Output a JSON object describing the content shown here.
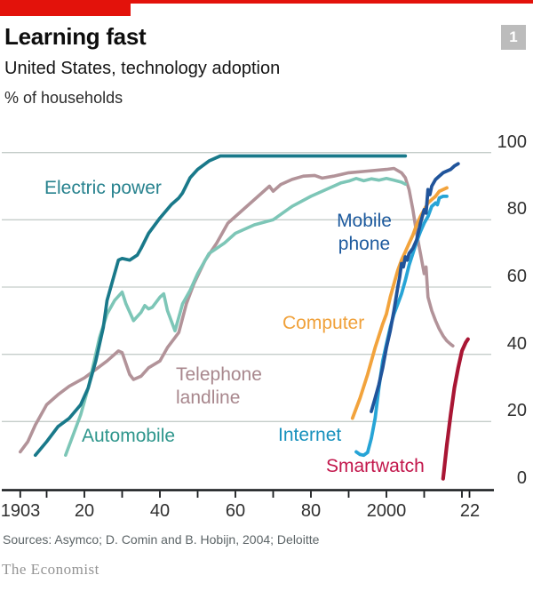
{
  "header": {
    "title": "Learning fast",
    "subtitle": "United States, technology adoption",
    "unit": "% of households",
    "badge": "1"
  },
  "footer": {
    "sources": "Sources: Asymco; D. Comin and B. Hobijn, 2004; Deloitte",
    "brand": "The Economist"
  },
  "style": {
    "accent_red": "#e3120b",
    "badge_bg": "#bcbcbc",
    "grid_color": "#c5cdca",
    "axis_color": "#16191b",
    "tick_text_color": "#2f2f2f"
  },
  "chart_data": {
    "type": "line",
    "title": "Learning fast",
    "subtitle": "United States, technology adoption",
    "ylabel": "% of households",
    "xlim": [
      1900,
      2025
    ],
    "ylim": [
      0,
      100
    ],
    "grid": "horizontal",
    "legend_position": "inline-labels",
    "yticks": [
      0,
      20,
      40,
      60,
      80,
      100
    ],
    "xticks": [
      {
        "year": 1903,
        "label": "1903"
      },
      {
        "year": 1910,
        "label": ""
      },
      {
        "year": 1920,
        "label": "20"
      },
      {
        "year": 1930,
        "label": ""
      },
      {
        "year": 1940,
        "label": "40"
      },
      {
        "year": 1950,
        "label": ""
      },
      {
        "year": 1960,
        "label": "60"
      },
      {
        "year": 1970,
        "label": ""
      },
      {
        "year": 1980,
        "label": "80"
      },
      {
        "year": 1990,
        "label": ""
      },
      {
        "year": 2000,
        "label": "2000"
      },
      {
        "year": 2010,
        "label": ""
      },
      {
        "year": 2020,
        "label": ""
      },
      {
        "year": 2022,
        "label": "22"
      }
    ],
    "series": [
      {
        "id": "telephone_landline",
        "label": "Telephone landline",
        "label_lines": [
          "Telephone",
          "landline"
        ],
        "color": "#b29399",
        "label_color": "#a8878d",
        "width": 3.6,
        "points": [
          [
            1903,
            11
          ],
          [
            1905,
            14
          ],
          [
            1907,
            19
          ],
          [
            1910,
            25
          ],
          [
            1913,
            28
          ],
          [
            1916,
            30.5
          ],
          [
            1920,
            33
          ],
          [
            1923,
            35.5
          ],
          [
            1926,
            38
          ],
          [
            1929,
            41
          ],
          [
            1930,
            40.5
          ],
          [
            1932,
            34
          ],
          [
            1933,
            32.5
          ],
          [
            1935,
            33.5
          ],
          [
            1937,
            36
          ],
          [
            1940,
            38
          ],
          [
            1942,
            42
          ],
          [
            1945,
            46.5
          ],
          [
            1947,
            55
          ],
          [
            1949,
            61
          ],
          [
            1952,
            68
          ],
          [
            1955,
            73
          ],
          [
            1958,
            79
          ],
          [
            1962,
            83
          ],
          [
            1965,
            86
          ],
          [
            1969,
            90
          ],
          [
            1970,
            88.5
          ],
          [
            1972,
            90.5
          ],
          [
            1975,
            92
          ],
          [
            1978,
            93
          ],
          [
            1981,
            93.2
          ],
          [
            1983,
            92.4
          ],
          [
            1986,
            93
          ],
          [
            1990,
            94
          ],
          [
            1995,
            94.5
          ],
          [
            2000,
            95
          ],
          [
            2002,
            95.3
          ],
          [
            2004,
            94
          ],
          [
            2005,
            92.5
          ],
          [
            2006,
            89
          ],
          [
            2007,
            83
          ],
          [
            2008,
            76
          ],
          [
            2009,
            70
          ],
          [
            2010,
            64
          ],
          [
            2010.5,
            66
          ],
          [
            2011,
            57
          ],
          [
            2012,
            53
          ],
          [
            2013,
            50
          ],
          [
            2014,
            47.5
          ],
          [
            2015,
            45.5
          ],
          [
            2016,
            44
          ],
          [
            2017,
            43
          ],
          [
            2017.6,
            42.5
          ]
        ]
      },
      {
        "id": "automobile",
        "label": "Automobile",
        "color": "#7dc6b7",
        "label_color": "#2e968c",
        "width": 3.6,
        "points": [
          [
            1915,
            10
          ],
          [
            1917,
            16
          ],
          [
            1919,
            22
          ],
          [
            1921,
            30
          ],
          [
            1922,
            35
          ],
          [
            1924,
            45
          ],
          [
            1926,
            52
          ],
          [
            1928,
            56
          ],
          [
            1930,
            58.5
          ],
          [
            1931,
            55
          ],
          [
            1933,
            50
          ],
          [
            1935,
            52.5
          ],
          [
            1936,
            54.5
          ],
          [
            1937,
            53.5
          ],
          [
            1938,
            54
          ],
          [
            1940,
            57
          ],
          [
            1941,
            58
          ],
          [
            1942,
            53
          ],
          [
            1944,
            47
          ],
          [
            1946,
            55
          ],
          [
            1948,
            59
          ],
          [
            1950,
            64
          ],
          [
            1953,
            70
          ],
          [
            1957,
            73
          ],
          [
            1960,
            76
          ],
          [
            1965,
            78.5
          ],
          [
            1970,
            80
          ],
          [
            1975,
            84
          ],
          [
            1980,
            87
          ],
          [
            1985,
            89.5
          ],
          [
            1988,
            91
          ],
          [
            1990,
            91.5
          ],
          [
            1992,
            92.3
          ],
          [
            1994,
            91.6
          ],
          [
            1996,
            92.2
          ],
          [
            1998,
            91.8
          ],
          [
            2000,
            92.3
          ],
          [
            2002,
            91.8
          ],
          [
            2004,
            91.2
          ],
          [
            2005,
            90.6
          ]
        ]
      },
      {
        "id": "electric_power",
        "label": "Electric power",
        "color": "#19798a",
        "label_color": "#27828e",
        "width": 3.7,
        "points": [
          [
            1907,
            10
          ],
          [
            1910,
            14
          ],
          [
            1913,
            18.5
          ],
          [
            1916,
            21
          ],
          [
            1919,
            25
          ],
          [
            1921,
            30
          ],
          [
            1923,
            38
          ],
          [
            1925,
            48
          ],
          [
            1926,
            56
          ],
          [
            1927.5,
            62
          ],
          [
            1929,
            68
          ],
          [
            1930,
            68.5
          ],
          [
            1932,
            68
          ],
          [
            1934,
            69.5
          ],
          [
            1935,
            71.5
          ],
          [
            1937,
            76
          ],
          [
            1940,
            80.5
          ],
          [
            1943,
            84.5
          ],
          [
            1945,
            86.5
          ],
          [
            1946,
            88
          ],
          [
            1948,
            92.5
          ],
          [
            1950,
            95
          ],
          [
            1953,
            97.5
          ],
          [
            1956,
            99
          ],
          [
            1970,
            99
          ],
          [
            1990,
            99
          ],
          [
            2005,
            99
          ]
        ]
      },
      {
        "id": "computer",
        "label": "Computer",
        "color": "#f2a33c",
        "label_color": "#f0a13a",
        "width": 3.8,
        "points": [
          [
            1991,
            21
          ],
          [
            1993,
            27
          ],
          [
            1995,
            34
          ],
          [
            1997,
            42
          ],
          [
            1999,
            49
          ],
          [
            2000,
            52
          ],
          [
            2001,
            57
          ],
          [
            2002,
            61
          ],
          [
            2003,
            65
          ],
          [
            2004,
            68
          ],
          [
            2005,
            70.5
          ],
          [
            2006,
            73
          ],
          [
            2007,
            75.5
          ],
          [
            2008,
            78.5
          ],
          [
            2009,
            81
          ],
          [
            2010,
            83
          ],
          [
            2011,
            85
          ],
          [
            2012,
            86
          ],
          [
            2013,
            87
          ],
          [
            2014,
            88.5
          ],
          [
            2015,
            89
          ],
          [
            2016,
            89.5
          ]
        ]
      },
      {
        "id": "internet",
        "label": "Internet",
        "color": "#27a4d6",
        "label_color": "#1791bd",
        "width": 3.8,
        "points": [
          [
            1992,
            11
          ],
          [
            1993,
            10.2
          ],
          [
            1994,
            10
          ],
          [
            1995,
            10.8
          ],
          [
            1996,
            15
          ],
          [
            1997,
            21
          ],
          [
            1998,
            30
          ],
          [
            1999,
            38
          ],
          [
            2000,
            43
          ],
          [
            2001,
            48
          ],
          [
            2002,
            52
          ],
          [
            2003,
            55
          ],
          [
            2004,
            58
          ],
          [
            2005,
            62
          ],
          [
            2006,
            66.5
          ],
          [
            2007,
            70
          ],
          [
            2008,
            73.5
          ],
          [
            2009,
            76.5
          ],
          [
            2010,
            79
          ],
          [
            2011,
            81
          ],
          [
            2012,
            84
          ],
          [
            2013,
            85
          ],
          [
            2013.5,
            84.5
          ],
          [
            2014,
            86.5
          ],
          [
            2015,
            87
          ],
          [
            2016,
            87
          ]
        ]
      },
      {
        "id": "mobile_phone",
        "label": "Mobile phone",
        "label_lines": [
          "Mobile",
          "phone"
        ],
        "color": "#20549b",
        "label_color": "#1d5a9e",
        "width": 3.8,
        "points": [
          [
            1996,
            23
          ],
          [
            1997,
            27
          ],
          [
            1998,
            31
          ],
          [
            1999,
            36
          ],
          [
            2000,
            42
          ],
          [
            2001,
            47
          ],
          [
            2002,
            53
          ],
          [
            2003,
            60
          ],
          [
            2003.5,
            63
          ],
          [
            2004,
            67
          ],
          [
            2004.5,
            66
          ],
          [
            2005,
            69
          ],
          [
            2005.5,
            68
          ],
          [
            2006,
            70
          ],
          [
            2007,
            71.5
          ],
          [
            2008,
            74
          ],
          [
            2009,
            79
          ],
          [
            2010,
            83
          ],
          [
            2010.5,
            82
          ],
          [
            2011,
            89
          ],
          [
            2011.5,
            87.5
          ],
          [
            2012,
            90
          ],
          [
            2013,
            92
          ],
          [
            2014,
            93
          ],
          [
            2015,
            94
          ],
          [
            2016,
            94.5
          ],
          [
            2017,
            95
          ],
          [
            2018,
            96
          ],
          [
            2019,
            96.7
          ]
        ]
      },
      {
        "id": "smartwatch",
        "label": "Smartwatch",
        "color": "#a91634",
        "label_color": "#c2164b",
        "width": 4.2,
        "points": [
          [
            2015,
            3
          ],
          [
            2015.5,
            8
          ],
          [
            2016,
            13
          ],
          [
            2017,
            22
          ],
          [
            2018,
            30
          ],
          [
            2019,
            36
          ],
          [
            2020,
            41
          ],
          [
            2021,
            43.5
          ],
          [
            2021.6,
            44.5
          ]
        ]
      }
    ]
  }
}
